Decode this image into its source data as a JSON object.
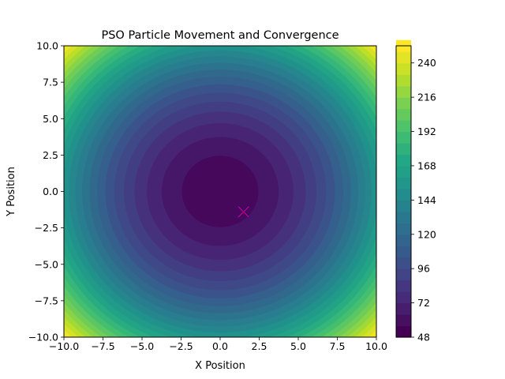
{
  "chart_data": {
    "type": "contour",
    "title": "PSO Particle Movement and Convergence",
    "xlabel": "X Position",
    "ylabel": "Y Position",
    "xlim": [
      -10,
      10
    ],
    "ylim": [
      -10,
      10
    ],
    "x_ticks": [
      "−10.0",
      "−7.5",
      "−5.0",
      "−2.5",
      "0.0",
      "2.5",
      "5.0",
      "7.5",
      "10.0"
    ],
    "y_ticks": [
      "−10.0",
      "−7.5",
      "−5.0",
      "−2.5",
      "0.0",
      "2.5",
      "5.0",
      "7.5",
      "10.0"
    ],
    "x_tick_values": [
      -10,
      -7.5,
      -5,
      -2.5,
      0,
      2.5,
      5,
      7.5,
      10
    ],
    "y_tick_values": [
      -10,
      -7.5,
      -5,
      -2.5,
      0,
      2.5,
      5,
      7.5,
      10
    ],
    "colorbar": {
      "vmin": 48,
      "vmax": 252,
      "level_step": 8,
      "ticks": [
        "48",
        "72",
        "96",
        "120",
        "144",
        "168",
        "192",
        "216",
        "240"
      ],
      "tick_values": [
        48,
        72,
        96,
        120,
        144,
        168,
        192,
        216,
        240
      ]
    },
    "surface": {
      "function": "x^2 + y^2 + 50",
      "colormap": "viridis"
    },
    "best_position": {
      "x": 1.5,
      "y": -1.4,
      "marker": "x",
      "color": "#ff0000"
    },
    "colors": {
      "marker_outline": "#0000ff",
      "viridis": [
        "#440154",
        "#482475",
        "#414487",
        "#355f8d",
        "#2a788e",
        "#21918c",
        "#22a884",
        "#44bf70",
        "#7ad151",
        "#bddf26",
        "#fde725"
      ]
    }
  }
}
